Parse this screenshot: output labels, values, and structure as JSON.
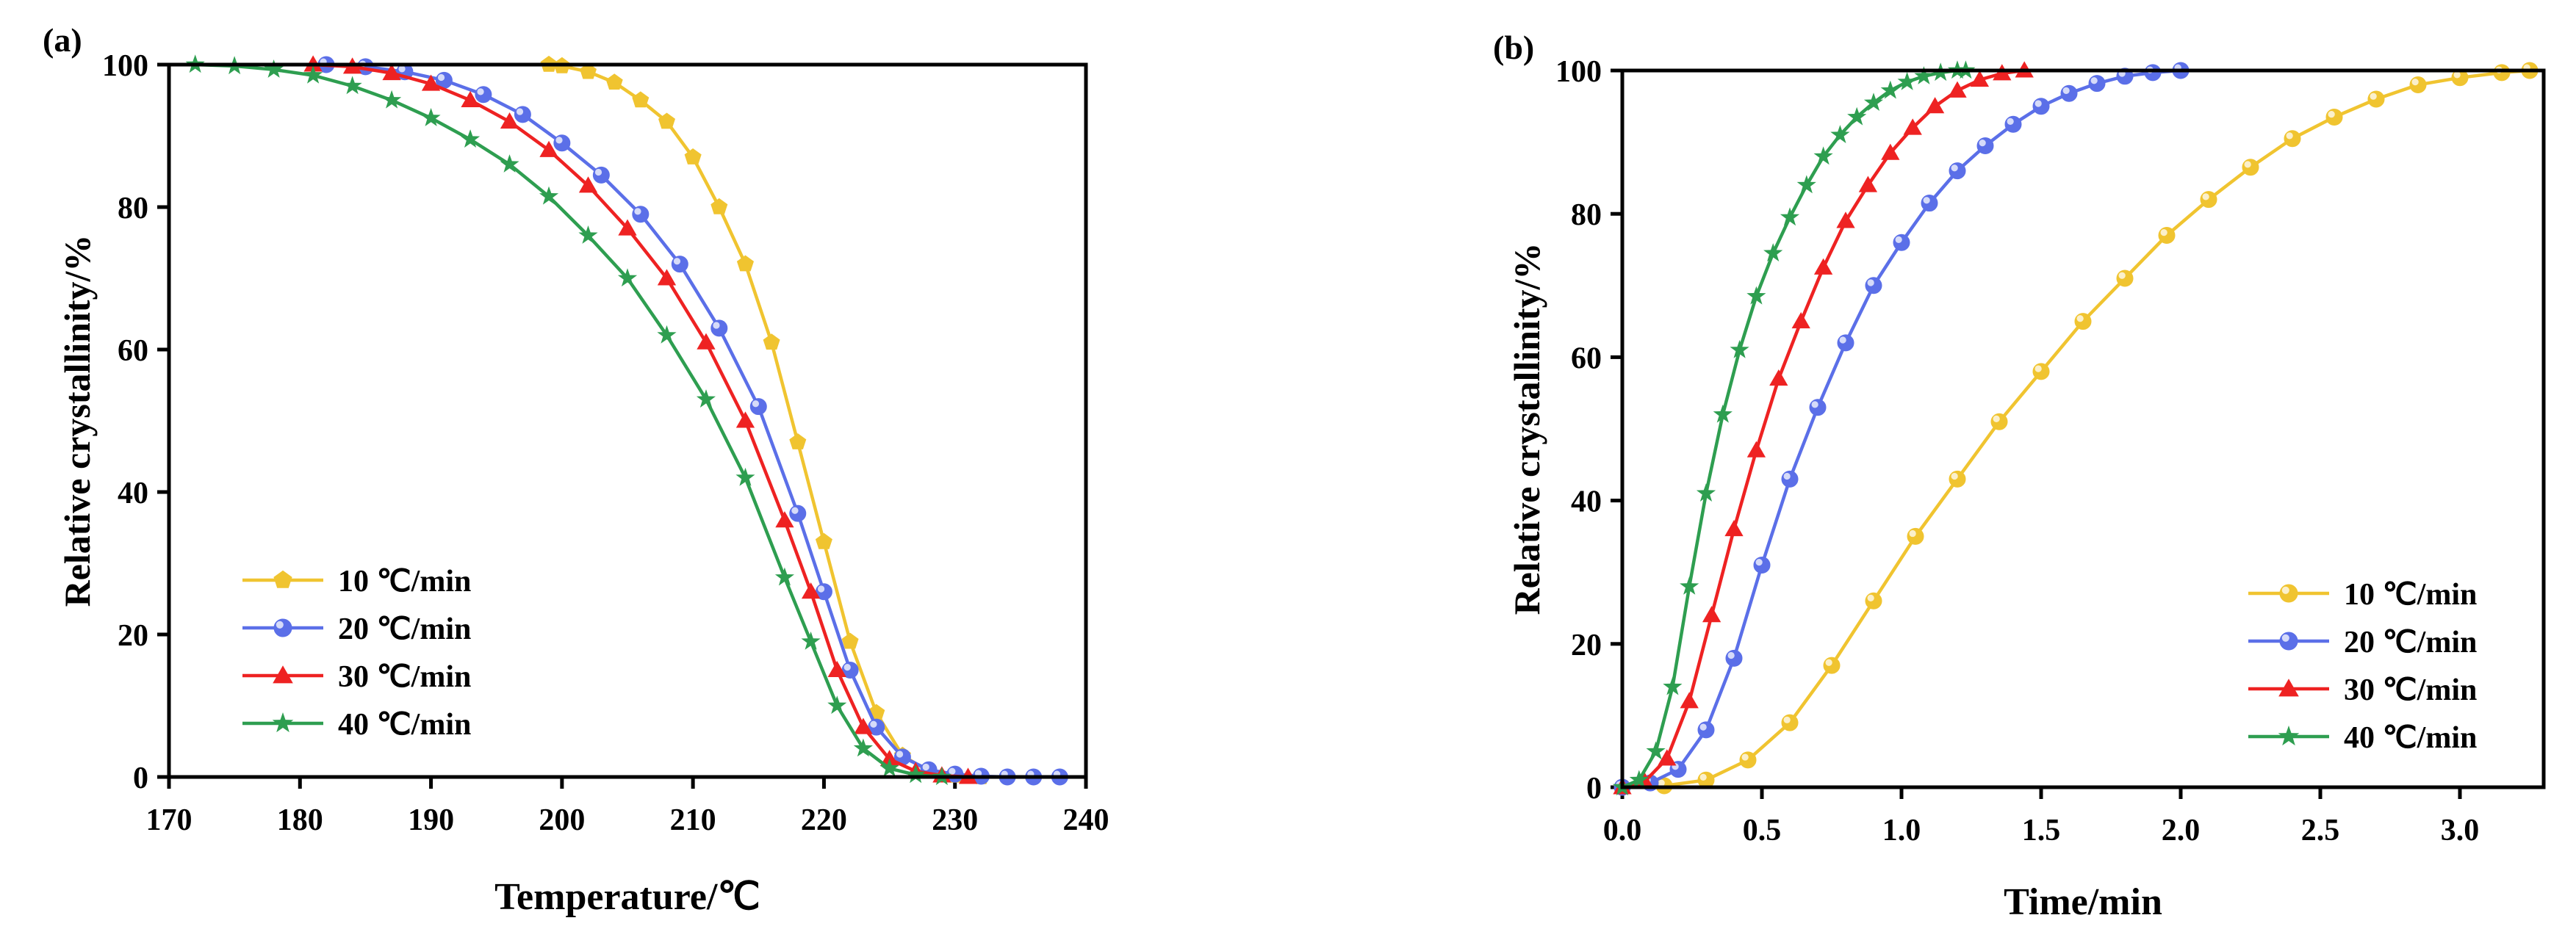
{
  "chart_data": [
    {
      "panel": "(a)",
      "type": "line",
      "xlabel": "Temperature/℃",
      "ylabel": "Relative crystallinity/%",
      "xlim": [
        170,
        240
      ],
      "ylim": [
        0,
        100
      ],
      "xticks": [
        170,
        180,
        190,
        200,
        210,
        220,
        230,
        240
      ],
      "yticks": [
        0,
        20,
        40,
        60,
        80,
        100
      ],
      "grid": false,
      "legend_position": "lower-left",
      "series": [
        {
          "name": "10 ℃/min",
          "color": "#F0C430",
          "marker": "pentagon",
          "x": [
            199,
            200,
            202,
            204,
            206,
            208,
            210,
            212,
            214,
            216,
            218,
            220,
            222,
            224,
            226,
            228,
            230,
            232
          ],
          "y": [
            100,
            99.8,
            99,
            97.5,
            95,
            92,
            87,
            80,
            72,
            61,
            47,
            33,
            19,
            9,
            3,
            0.8,
            0.2,
            0
          ]
        },
        {
          "name": "20 ℃/min",
          "color": "#5B6FE8",
          "marker": "sphere",
          "x": [
            182,
            185,
            188,
            191,
            194,
            197,
            200,
            203,
            206,
            209,
            212,
            215,
            218,
            220,
            222,
            224,
            226,
            228,
            230,
            232,
            234,
            236,
            238
          ],
          "y": [
            100,
            99.7,
            99,
            97.8,
            95.8,
            93,
            89,
            84.5,
            79,
            72,
            63,
            52,
            37,
            26,
            15,
            7,
            2.8,
            1,
            0.4,
            0.1,
            0,
            0,
            0
          ]
        },
        {
          "name": "30 ℃/min",
          "color": "#EE2222",
          "marker": "triangle",
          "x": [
            181,
            184,
            187,
            190,
            193,
            196,
            199,
            202,
            205,
            208,
            211,
            214,
            217,
            219,
            221,
            223,
            225,
            227,
            229,
            231
          ],
          "y": [
            100,
            99.7,
            98.8,
            97.3,
            95,
            92,
            88,
            83,
            77,
            70,
            61,
            50,
            36,
            26,
            15,
            7,
            2.5,
            0.8,
            0.2,
            0
          ]
        },
        {
          "name": "40 ℃/min",
          "color": "#2E9E50",
          "marker": "star",
          "x": [
            172,
            175,
            178,
            181,
            184,
            187,
            190,
            193,
            196,
            199,
            202,
            205,
            208,
            211,
            214,
            217,
            219,
            221,
            223,
            225,
            227,
            229
          ],
          "y": [
            100,
            99.8,
            99.3,
            98.5,
            97,
            95,
            92.5,
            89.5,
            86,
            81.5,
            76,
            70,
            62,
            53,
            42,
            28,
            19,
            10,
            4,
            1.2,
            0.3,
            0
          ]
        }
      ]
    },
    {
      "panel": "(b)",
      "type": "line",
      "xlabel": "Time/min",
      "ylabel": "Relative crystallinity/%",
      "xlim": [
        0,
        3.3
      ],
      "ylim": [
        0,
        100
      ],
      "xticks": [
        0.0,
        0.5,
        1.0,
        1.5,
        2.0,
        2.5,
        3.0
      ],
      "xtick_labels": [
        "0.0",
        "0.5",
        "1.0",
        "1.5",
        "2.0",
        "2.5",
        "3.0"
      ],
      "yticks": [
        0,
        20,
        40,
        60,
        80,
        100
      ],
      "grid": false,
      "legend_position": "lower-right",
      "series": [
        {
          "name": "10 ℃/min",
          "color": "#F0C430",
          "marker": "sphere",
          "x": [
            0,
            0.15,
            0.3,
            0.45,
            0.6,
            0.75,
            0.9,
            1.05,
            1.2,
            1.35,
            1.5,
            1.65,
            1.8,
            1.95,
            2.1,
            2.25,
            2.4,
            2.55,
            2.7,
            2.85,
            3.0,
            3.15,
            3.25
          ],
          "y": [
            0,
            0.2,
            1,
            3.8,
            9,
            17,
            26,
            35,
            43,
            51,
            58,
            65,
            71,
            77,
            82,
            86.5,
            90.5,
            93.5,
            96,
            98,
            99,
            99.7,
            100
          ]
        },
        {
          "name": "20 ℃/min",
          "color": "#5B6FE8",
          "marker": "sphere",
          "x": [
            0,
            0.1,
            0.2,
            0.3,
            0.4,
            0.5,
            0.6,
            0.7,
            0.8,
            0.9,
            1.0,
            1.1,
            1.2,
            1.3,
            1.4,
            1.5,
            1.6,
            1.7,
            1.8,
            1.9,
            2.0
          ],
          "y": [
            0,
            0.6,
            2.5,
            8,
            18,
            31,
            43,
            53,
            62,
            70,
            76,
            81.5,
            86,
            89.5,
            92.5,
            95,
            96.8,
            98.2,
            99.2,
            99.7,
            100
          ]
        },
        {
          "name": "30 ℃/min",
          "color": "#EE2222",
          "marker": "triangle",
          "x": [
            0,
            0.08,
            0.16,
            0.24,
            0.32,
            0.4,
            0.48,
            0.56,
            0.64,
            0.72,
            0.8,
            0.88,
            0.96,
            1.04,
            1.12,
            1.2,
            1.28,
            1.36,
            1.44
          ],
          "y": [
            0,
            0.8,
            4,
            12,
            24,
            36,
            47,
            57,
            65,
            72.5,
            79,
            84,
            88.5,
            92,
            95,
            97.2,
            98.7,
            99.6,
            100
          ]
        },
        {
          "name": "40 ℃/min",
          "color": "#2E9E50",
          "marker": "star",
          "x": [
            0,
            0.06,
            0.12,
            0.18,
            0.24,
            0.3,
            0.36,
            0.42,
            0.48,
            0.54,
            0.6,
            0.66,
            0.72,
            0.78,
            0.84,
            0.9,
            0.96,
            1.02,
            1.08,
            1.14,
            1.2,
            1.23
          ],
          "y": [
            0,
            1,
            5,
            14,
            28,
            41,
            52,
            61,
            68.5,
            74.5,
            79.5,
            84,
            88,
            91,
            93.5,
            95.5,
            97.2,
            98.4,
            99.2,
            99.7,
            100,
            100
          ]
        }
      ]
    }
  ]
}
